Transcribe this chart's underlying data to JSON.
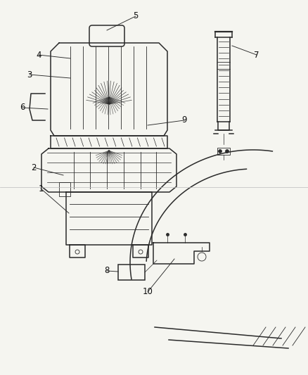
{
  "background_color": "#f5f5f0",
  "line_color": "#2a2a2a",
  "fig_width": 4.38,
  "fig_height": 5.33,
  "dpi": 100,
  "label_fontsize": 8.5
}
